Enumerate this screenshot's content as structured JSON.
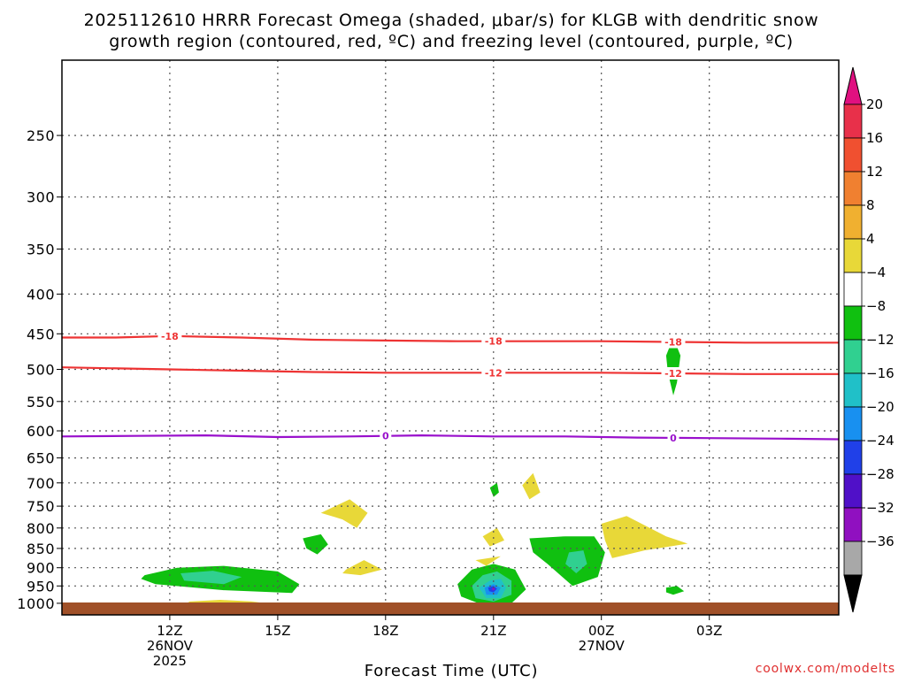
{
  "chart_data": {
    "type": "contour-timeseries",
    "title_line1": "2025112610 HRRR Forecast Omega (shaded, μbar/s) for KLGB with dendritic snow",
    "title_line2": "growth region (contoured, red, ºC) and freezing level (contoured, purple, ºC)",
    "xlabel": "Forecast Time (UTC)",
    "credit": "coolwx.com/modelts",
    "y_axis": {
      "scale": "log-pressure",
      "top": 200,
      "bottom": 1035,
      "ticks": [
        250,
        300,
        350,
        400,
        450,
        500,
        550,
        600,
        650,
        700,
        750,
        800,
        850,
        900,
        950,
        1000
      ]
    },
    "x_axis": {
      "start_hour": 9,
      "end_hour": 30.6,
      "ticks": [
        {
          "hour": 12,
          "l1": "12Z",
          "l2": "26NOV",
          "l3": "2025"
        },
        {
          "hour": 15,
          "l1": "15Z",
          "l2": "",
          "l3": ""
        },
        {
          "hour": 18,
          "l1": "18Z",
          "l2": "",
          "l3": ""
        },
        {
          "hour": 21,
          "l1": "21Z",
          "l2": "",
          "l3": ""
        },
        {
          "hour": 24,
          "l1": "00Z",
          "l2": "27NOV",
          "l3": ""
        },
        {
          "hour": 27,
          "l1": "03Z",
          "l2": "",
          "l3": ""
        }
      ]
    },
    "colorbar": {
      "labels": [
        "20",
        "16",
        "12",
        "8",
        "4",
        "−4",
        "−8",
        "−12",
        "−16",
        "−20",
        "−24",
        "−28",
        "−32",
        "−36"
      ],
      "colors": [
        "#e8304a",
        "#f05030",
        "#f08030",
        "#f0b030",
        "#e8d838",
        "#ffffff",
        "#10c010",
        "#30d090",
        "#20c0c8",
        "#1890f0",
        "#2040e8",
        "#5010c8",
        "#9010c0",
        "#a8a8a8"
      ],
      "top_color": "#e01080",
      "bottom_color": "#000000"
    },
    "contours": [
      {
        "name": "dgz-minus18",
        "value": "-18",
        "color": "#ee3333",
        "points": [
          [
            9,
            455
          ],
          [
            10.5,
            455
          ],
          [
            12,
            453
          ],
          [
            14,
            455
          ],
          [
            16,
            458
          ],
          [
            18,
            459
          ],
          [
            20,
            460
          ],
          [
            22,
            460
          ],
          [
            24,
            460
          ],
          [
            26,
            461
          ],
          [
            28,
            462
          ],
          [
            30.6,
            462
          ]
        ],
        "labels": [
          12,
          21,
          26
        ]
      },
      {
        "name": "dgz-minus12",
        "value": "-12",
        "color": "#ee3333",
        "points": [
          [
            9,
            497
          ],
          [
            12,
            500
          ],
          [
            14,
            502
          ],
          [
            16,
            504
          ],
          [
            18,
            505
          ],
          [
            20,
            505
          ],
          [
            22,
            505
          ],
          [
            24,
            505
          ],
          [
            26,
            506
          ],
          [
            28,
            507
          ],
          [
            30.6,
            507
          ]
        ],
        "labels": [
          21,
          26
        ]
      },
      {
        "name": "freezing-level",
        "value": "0",
        "color": "#9910cc",
        "points": [
          [
            9,
            610
          ],
          [
            11,
            609
          ],
          [
            13,
            608
          ],
          [
            15,
            611
          ],
          [
            17,
            610
          ],
          [
            19,
            608
          ],
          [
            21,
            610
          ],
          [
            23,
            610
          ],
          [
            25,
            612
          ],
          [
            27,
            613
          ],
          [
            29,
            614
          ],
          [
            30.6,
            615
          ]
        ],
        "labels": [
          18,
          26
        ]
      }
    ],
    "shaded_areas": [
      {
        "name": "omega-neg-4-a",
        "color": "#10c010",
        "points": [
          [
            11.3,
            920
          ],
          [
            12.2,
            900
          ],
          [
            13.5,
            895
          ],
          [
            15,
            910
          ],
          [
            15.6,
            945
          ],
          [
            15.4,
            970
          ],
          [
            13.5,
            962
          ],
          [
            11.6,
            945
          ],
          [
            11.2,
            930
          ]
        ]
      },
      {
        "name": "omega-neg-8-a",
        "color": "#30d090",
        "points": [
          [
            12.3,
            915
          ],
          [
            13.2,
            908
          ],
          [
            14,
            925
          ],
          [
            13.5,
            945
          ],
          [
            12.4,
            935
          ]
        ]
      },
      {
        "name": "omega-pos-4-a",
        "color": "#e8d838",
        "points": [
          [
            12.5,
            995
          ],
          [
            13.4,
            990
          ],
          [
            14.5,
            996
          ],
          [
            13.5,
            1004
          ],
          [
            12.6,
            1000
          ]
        ]
      },
      {
        "name": "omega-neg-4-b",
        "color": "#10c010",
        "points": [
          [
            15.7,
            825
          ],
          [
            16.2,
            815
          ],
          [
            16.4,
            840
          ],
          [
            16.1,
            865
          ],
          [
            15.8,
            850
          ]
        ]
      },
      {
        "name": "omega-pos-4-b",
        "color": "#e8d838",
        "points": [
          [
            16.2,
            765
          ],
          [
            17,
            735
          ],
          [
            17.5,
            765
          ],
          [
            17.2,
            800
          ],
          [
            16.8,
            780
          ]
        ]
      },
      {
        "name": "omega-pos-4-c",
        "color": "#e8d838",
        "points": [
          [
            16.9,
            905
          ],
          [
            17.4,
            880
          ],
          [
            17.9,
            905
          ],
          [
            17.3,
            920
          ],
          [
            16.8,
            915
          ]
        ]
      },
      {
        "name": "omega-pos-4-d",
        "color": "#e8d838",
        "points": [
          [
            20.5,
            880
          ],
          [
            21.2,
            870
          ],
          [
            20.8,
            895
          ]
        ]
      },
      {
        "name": "omega-neg-4-c",
        "color": "#10c010",
        "points": [
          [
            20.9,
            710
          ],
          [
            21.1,
            700
          ],
          [
            21.15,
            720
          ],
          [
            21.0,
            730
          ]
        ]
      },
      {
        "name": "omega-pos-4-e",
        "color": "#e8d838",
        "points": [
          [
            21.8,
            705
          ],
          [
            22.1,
            680
          ],
          [
            22.3,
            720
          ],
          [
            22.0,
            735
          ]
        ]
      },
      {
        "name": "omega-pos-4-f",
        "color": "#e8d838",
        "points": [
          [
            20.7,
            820
          ],
          [
            21.1,
            800
          ],
          [
            21.3,
            830
          ],
          [
            20.9,
            845
          ]
        ]
      },
      {
        "name": "omega-neg-4-d",
        "color": "#10c010",
        "points": [
          [
            20.0,
            945
          ],
          [
            20.4,
            905
          ],
          [
            21.0,
            890
          ],
          [
            21.6,
            905
          ],
          [
            21.9,
            960
          ],
          [
            21.5,
            1000
          ],
          [
            20.7,
            1005
          ],
          [
            20.1,
            980
          ]
        ]
      },
      {
        "name": "omega-neg-8-d",
        "color": "#30d090",
        "points": [
          [
            20.4,
            950
          ],
          [
            20.7,
            920
          ],
          [
            21.1,
            910
          ],
          [
            21.5,
            935
          ],
          [
            21.5,
            975
          ],
          [
            21.0,
            995
          ],
          [
            20.5,
            985
          ]
        ]
      },
      {
        "name": "omega-neg-12-d",
        "color": "#20c0c8",
        "points": [
          [
            20.6,
            955
          ],
          [
            20.9,
            935
          ],
          [
            21.2,
            930
          ],
          [
            21.35,
            955
          ],
          [
            21.2,
            985
          ],
          [
            20.8,
            985
          ]
        ]
      },
      {
        "name": "omega-neg-16-d",
        "color": "#1890f0",
        "points": [
          [
            20.75,
            955
          ],
          [
            21.0,
            945
          ],
          [
            21.2,
            955
          ],
          [
            21.1,
            975
          ],
          [
            20.8,
            975
          ]
        ]
      },
      {
        "name": "omega-neg-20-d",
        "color": "#2040e8",
        "points": [
          [
            20.85,
            955
          ],
          [
            21.0,
            950
          ],
          [
            21.1,
            958
          ],
          [
            21.0,
            968
          ],
          [
            20.88,
            965
          ]
        ]
      },
      {
        "name": "omega-neg-28-d",
        "color": "#9010c0",
        "points": [
          [
            20.95,
            957
          ],
          [
            21.02,
            955
          ],
          [
            21.05,
            960
          ],
          [
            20.98,
            963
          ]
        ]
      },
      {
        "name": "omega-neg-4-e",
        "color": "#10c010",
        "points": [
          [
            22.0,
            825
          ],
          [
            23.0,
            820
          ],
          [
            23.8,
            820
          ],
          [
            24.1,
            860
          ],
          [
            23.9,
            925
          ],
          [
            23.2,
            950
          ],
          [
            22.5,
            890
          ],
          [
            22.1,
            860
          ]
        ]
      },
      {
        "name": "omega-neg-8-e",
        "color": "#30d090",
        "points": [
          [
            23.1,
            860
          ],
          [
            23.5,
            855
          ],
          [
            23.6,
            890
          ],
          [
            23.3,
            915
          ],
          [
            23.0,
            890
          ]
        ]
      },
      {
        "name": "omega-pos-4-g",
        "color": "#e8d838",
        "points": [
          [
            24.0,
            790
          ],
          [
            24.7,
            772
          ],
          [
            25.8,
            820
          ],
          [
            26.4,
            838
          ],
          [
            25.2,
            855
          ],
          [
            24.3,
            875
          ],
          [
            24.1,
            830
          ]
        ]
      },
      {
        "name": "omega-neg-4-f",
        "color": "#10c010",
        "points": [
          [
            26.0,
            455
          ],
          [
            26.2,
            480
          ],
          [
            26.1,
            520
          ],
          [
            26.0,
            540
          ],
          [
            25.85,
            505
          ],
          [
            25.8,
            480
          ]
        ]
      },
      {
        "name": "omega-neg-4-g",
        "color": "#10c010",
        "points": [
          [
            25.8,
            955
          ],
          [
            26.1,
            950
          ],
          [
            26.3,
            965
          ],
          [
            26.0,
            975
          ],
          [
            25.8,
            968
          ]
        ]
      }
    ]
  }
}
